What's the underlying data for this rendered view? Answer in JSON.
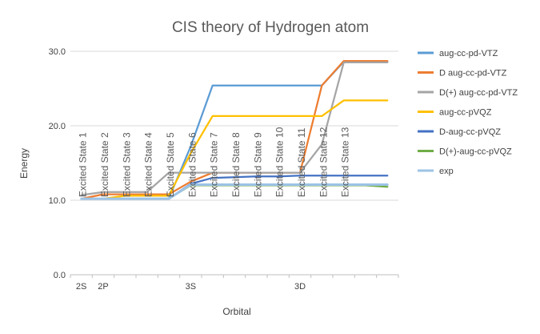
{
  "chart_data": {
    "type": "line",
    "title": "CIS theory of Hydrogen atom",
    "xlabel": "Orbital",
    "ylabel": "Energy",
    "ylim": [
      0,
      30
    ],
    "yticks": [
      "0.0",
      "10.0",
      "20.0",
      "30.0"
    ],
    "grid": "horizontal",
    "legend_position": "right",
    "categories": [
      "2S",
      "2P",
      "",
      "",
      "",
      "3S",
      "",
      "",
      "",
      "",
      "3D",
      "",
      "",
      "",
      ""
    ],
    "annotations": [
      "Excited State 1",
      "Excited State 2",
      "Excited State 3",
      "Excited State 4",
      "Excited State 5",
      "Excited State 6",
      "Excited State 7",
      "Excited State 8",
      "Excited State 9",
      "Excited State 10",
      "Excited State 11",
      "Excited State 12",
      "Excited State 13"
    ],
    "series": [
      {
        "name": "aug-cc-pd-VTZ",
        "color": "#5B9BD5",
        "values": [
          10.2,
          10.2,
          10.2,
          10.2,
          10.2,
          17.2,
          25.4,
          25.4,
          25.4,
          25.4,
          25.4,
          25.4,
          28.6,
          28.6,
          28.6
        ]
      },
      {
        "name": "D aug-cc-pd-VTZ",
        "color": "#ED7D31",
        "values": [
          10.2,
          10.8,
          10.8,
          10.8,
          10.8,
          12.5,
          13.7,
          13.7,
          13.7,
          13.7,
          13.7,
          25.4,
          28.7,
          28.7,
          28.7
        ]
      },
      {
        "name": "D(+) aug-cc-pd-VTZ",
        "color": "#A5A5A5",
        "values": [
          10.7,
          11.1,
          11.1,
          11.1,
          13.7,
          13.7,
          13.7,
          13.7,
          13.7,
          13.7,
          13.7,
          17.5,
          28.5,
          28.5,
          28.5
        ]
      },
      {
        "name": "aug-cc-pVQZ",
        "color": "#FFC000",
        "values": [
          10.2,
          10.2,
          10.6,
          10.6,
          10.6,
          16.3,
          21.3,
          21.3,
          21.3,
          21.3,
          21.3,
          21.3,
          23.4,
          23.4,
          23.4
        ]
      },
      {
        "name": "D-aug-cc-pVQZ",
        "color": "#4472C4",
        "values": [
          10.2,
          10.2,
          10.2,
          10.2,
          10.2,
          12.2,
          13.0,
          13.1,
          13.2,
          13.2,
          13.3,
          13.3,
          13.3,
          13.3,
          13.3
        ]
      },
      {
        "name": "D(+)-aug-cc-pVQZ",
        "color": "#70AD47",
        "values": [
          10.2,
          10.2,
          10.2,
          10.2,
          10.2,
          12.0,
          12.0,
          12.0,
          12.0,
          12.0,
          12.0,
          12.0,
          12.0,
          12.0,
          11.8
        ]
      },
      {
        "name": "exp",
        "color": "#9DC3E6",
        "values": [
          10.2,
          10.2,
          10.2,
          10.2,
          10.2,
          12.1,
          12.1,
          12.1,
          12.1,
          12.1,
          12.1,
          12.1,
          12.1,
          12.1,
          12.1
        ]
      }
    ]
  }
}
